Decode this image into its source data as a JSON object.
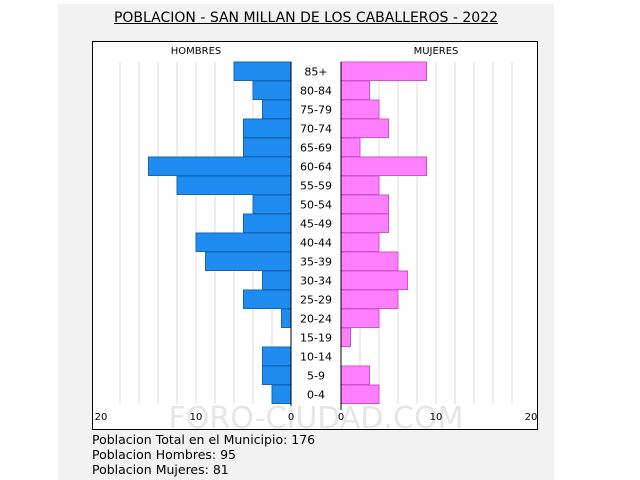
{
  "title": "POBLACION - SAN MILLAN DE LOS CABALLEROS - 2022",
  "watermark": "FORO-CIUDAD.COM",
  "stats": {
    "total": "Poblacion Total en el Municipio: 176",
    "hombres": "Poblacion Hombres: 95",
    "mujeres": "Poblacion Mujeres: 81"
  },
  "colors": {
    "male": "#1e8cf0",
    "male_stroke": "#1466b4",
    "female": "#ff80ff",
    "female_stroke": "#d24fd2",
    "grid": "#dcdcdc"
  },
  "chart_data": {
    "type": "bar",
    "orientation": "horizontal-population-pyramid",
    "title": "POBLACION - SAN MILLAN DE LOS CABALLEROS - 2022",
    "categories": [
      "85+",
      "80-84",
      "75-79",
      "70-74",
      "65-69",
      "60-64",
      "55-59",
      "50-54",
      "45-49",
      "40-44",
      "35-39",
      "30-34",
      "25-29",
      "20-24",
      "15-19",
      "10-14",
      "5-9",
      "0-4"
    ],
    "series": [
      {
        "name": "HOMBRES",
        "values": [
          6,
          4,
          3,
          5,
          5,
          15,
          12,
          4,
          5,
          10,
          9,
          3,
          5,
          1,
          0,
          3,
          3,
          2
        ]
      },
      {
        "name": "MUJERES",
        "values": [
          9,
          3,
          4,
          5,
          2,
          9,
          4,
          5,
          5,
          4,
          6,
          7,
          6,
          4,
          1,
          0,
          3,
          4
        ]
      }
    ],
    "xlim": [
      0,
      20
    ],
    "xticks": [
      "20",
      "10",
      "0",
      "0",
      "10",
      "20"
    ],
    "grid": true
  }
}
